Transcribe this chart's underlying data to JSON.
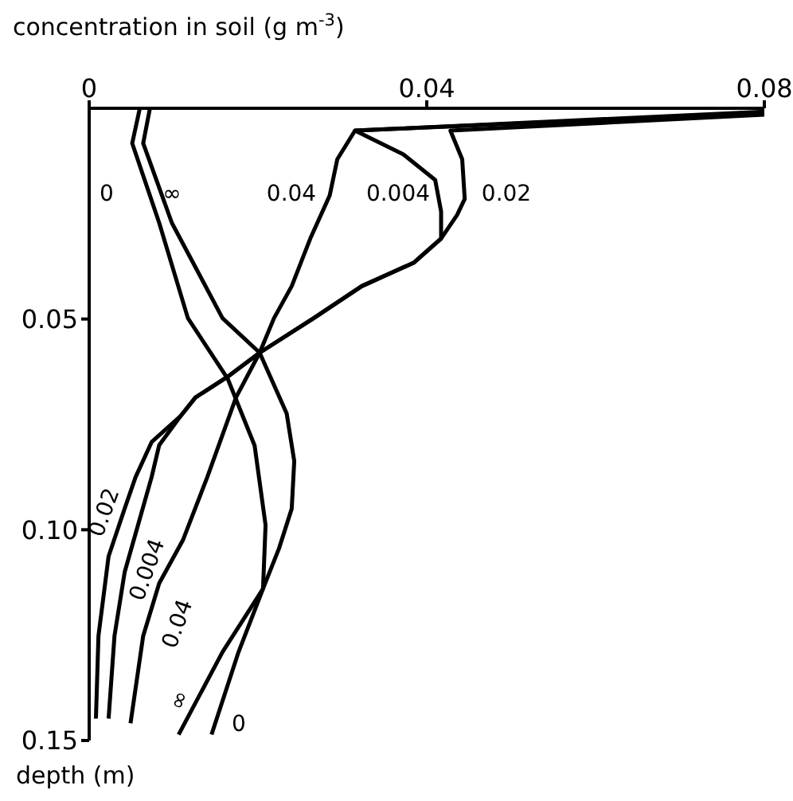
{
  "chart_data": {
    "type": "line",
    "xlabel": "concentration in soil (g m$^{-3}$)",
    "ylabel": "depth (m)",
    "xlim": [
      0,
      0.08
    ],
    "xticks": [
      0,
      0.04,
      0.08
    ],
    "ylim": [
      0.15,
      0
    ],
    "yticks": [
      0.05,
      {
        "value": 0.1,
        "label": "0.10"
      },
      0.15
    ],
    "grid": false,
    "legend": false,
    "marker": "none",
    "line_style": "solid",
    "series": [
      {
        "name": "0",
        "color": "#000000",
        "x": [
          0.006,
          0.0051,
          0.0083,
          0.0117,
          0.0164,
          0.0196,
          0.0209,
          0.0206,
          0.0177,
          0.0145
        ],
        "values": [
          0,
          0.0083,
          0.0272,
          0.0498,
          0.0641,
          0.08,
          0.0989,
          0.114,
          0.129,
          0.1486
        ]
      },
      {
        "name": "∞",
        "color": "#000000",
        "x": [
          0.0072,
          0.0064,
          0.0098,
          0.0158,
          0.0202,
          0.0234,
          0.0243,
          0.024,
          0.0225,
          0.0206,
          0.0158,
          0.0106
        ],
        "values": [
          0,
          0.0083,
          0.0272,
          0.0498,
          0.058,
          0.0724,
          0.0837,
          0.095,
          0.1044,
          0.114,
          0.129,
          0.1486
        ]
      },
      {
        "name": "0.04",
        "color": "#000000",
        "x": [
          0.08,
          0.0315,
          0.0294,
          0.0285,
          0.0262,
          0.024,
          0.0219,
          0.0202,
          0.0174,
          0.014,
          0.0111,
          0.0083,
          0.0064,
          0.0049
        ],
        "values": [
          0.0008,
          0.0053,
          0.0121,
          0.0207,
          0.0309,
          0.0422,
          0.0498,
          0.058,
          0.0686,
          0.0875,
          0.1025,
          0.1127,
          0.1252,
          0.1459
        ]
      },
      {
        "name": "0.004",
        "color": "#000000",
        "x": [
          0.08,
          0.0315,
          0.0372,
          0.041,
          0.0417,
          0.0417,
          0.0385,
          0.0323,
          0.0266,
          0.0202,
          0.0164,
          0.0126,
          0.0108,
          0.0083,
          0.0074,
          0.0058,
          0.0042,
          0.003,
          0.0023
        ],
        "values": [
          0.0011,
          0.0053,
          0.0109,
          0.017,
          0.0245,
          0.0309,
          0.0366,
          0.0422,
          0.0498,
          0.058,
          0.0637,
          0.0686,
          0.0731,
          0.0799,
          0.0875,
          0.0988,
          0.1101,
          0.1252,
          0.1448
        ]
      },
      {
        "name": "0.02",
        "color": "#000000",
        "x": [
          0.08,
          0.0428,
          0.0442,
          0.0445,
          0.0436,
          0.0417,
          0.0385,
          0.0323,
          0.0266,
          0.0202,
          0.0164,
          0.0126,
          0.0108,
          0.0074,
          0.0055,
          0.0042,
          0.0023,
          0.0011,
          0.0008
        ],
        "values": [
          0.0015,
          0.0053,
          0.0121,
          0.0215,
          0.0253,
          0.0309,
          0.0366,
          0.0422,
          0.0498,
          0.058,
          0.0637,
          0.0686,
          0.0731,
          0.0792,
          0.0875,
          0.095,
          0.1063,
          0.1252,
          0.1448
        ]
      }
    ]
  }
}
